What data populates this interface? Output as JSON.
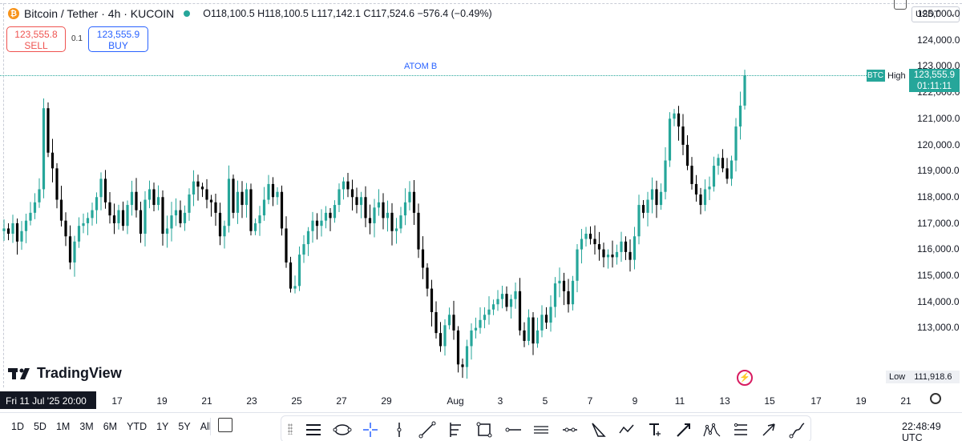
{
  "header": {
    "symbol_title": "Bitcoin / Tether · 4h · KUCOIN",
    "ohlc": "O118,100.5  H118,100.5  L117,142.1  C117,524.6  −576.4 (−0.49%)",
    "coin_glyph": "₿"
  },
  "trade": {
    "sell_price": "123,555.8",
    "sell_label": "SELL",
    "spread": "0.1",
    "buy_price": "123,555.9",
    "buy_label": "BUY"
  },
  "currency": "USDT",
  "price_axis": [
    "125,000.0",
    "124,000.0",
    "123,000.0",
    "122,000.0",
    "121,000.0",
    "120,000.0",
    "119,000.0",
    "118,000.0",
    "117,000.0",
    "116,000.0",
    "115,000.0",
    "114,000.0",
    "113,000.0"
  ],
  "annotation": "ATOM B",
  "tags": {
    "btc": "BTC",
    "high_label": "High",
    "high_value": "123,555.9",
    "countdown": "01:11:11",
    "low_label": "Low",
    "low_value": "111,918.6"
  },
  "brand": "TradingView",
  "time_axis": {
    "current": "Fri 11 Jul '25   20:00",
    "ticks": [
      "17",
      "19",
      "21",
      "23",
      "25",
      "27",
      "29",
      "Aug",
      "3",
      "5",
      "7",
      "9",
      "11",
      "13",
      "15",
      "17",
      "19",
      "21"
    ]
  },
  "ranges": [
    "1D",
    "5D",
    "1M",
    "3M",
    "6M",
    "YTD",
    "1Y",
    "5Y",
    "All"
  ],
  "clock": "22:48:49 UTC",
  "tools": [
    "horizontal-lines-icon",
    "ellipse-icon",
    "crosshair-icon",
    "vertical-line-icon",
    "trend-line-icon",
    "fib-icon",
    "rectangle-icon",
    "horizontal-ray-icon",
    "parallel-channel-icon",
    "path-icon",
    "triangle-icon",
    "arrow-path-icon",
    "text-icon",
    "arrow-marker-icon",
    "pattern-icon",
    "long-short-icon",
    "arrow-icon",
    "brush-icon"
  ],
  "colors": {
    "up": "#26a69a",
    "down": "#000000",
    "accent": "#2962ff",
    "sell": "#ef5350"
  },
  "chart_data": {
    "type": "candlestick",
    "ylim": [
      111500,
      125600
    ],
    "x_ticks": [
      "17",
      "19",
      "21",
      "23",
      "25",
      "27",
      "29",
      "Aug",
      "3",
      "5",
      "7",
      "9",
      "11",
      "13",
      "15",
      "17",
      "19",
      "21"
    ],
    "high": 123555.9,
    "low": 111918.6,
    "closes": [
      117700,
      117500,
      117900,
      117200,
      117600,
      118000,
      118300,
      118700,
      119200,
      122300,
      120600,
      120000,
      118800,
      118000,
      117400,
      116400,
      117200,
      117800,
      117900,
      118100,
      118400,
      118900,
      119600,
      118700,
      118200,
      117900,
      118400,
      117800,
      118600,
      119100,
      118400,
      117500,
      118800,
      119200,
      118600,
      118900,
      117500,
      117700,
      118200,
      118400,
      117900,
      118300,
      119000,
      119500,
      119300,
      119200,
      118800,
      118700,
      118300,
      117400,
      117800,
      119600,
      118300,
      119100,
      118600,
      119200,
      117600,
      117900,
      118200,
      118800,
      119400,
      118900,
      119100,
      117700,
      116400,
      115400,
      115500,
      116700,
      117100,
      117600,
      118000,
      117800,
      118000,
      118300,
      118100,
      118600,
      119200,
      119500,
      119200,
      118900,
      118600,
      118900,
      118100,
      117900,
      118500,
      118700,
      118100,
      118300,
      117600,
      117700,
      118200,
      118700,
      119100,
      118300,
      116900,
      116200,
      115400,
      114500,
      113700,
      113200,
      114000,
      114400,
      113800,
      112500,
      112400,
      113200,
      113800,
      113900,
      114200,
      114400,
      114600,
      114800,
      115000,
      115200,
      114700,
      115000,
      115300,
      113800,
      113400,
      114300,
      113300,
      113800,
      114400,
      114100,
      114700,
      115600,
      115700,
      115300,
      114800,
      115700,
      116900,
      117300,
      117500,
      117300,
      117100,
      116900,
      116600,
      116700,
      116600,
      116800,
      117200,
      116800,
      116500,
      117400,
      118600,
      118300,
      118800,
      119200,
      118600,
      119100,
      120300,
      121900,
      122100,
      121600,
      120900,
      120100,
      119400,
      119000,
      118600,
      119200,
      119300,
      120100,
      120400,
      120000,
      119600,
      120300,
      121600,
      122400,
      123556
    ]
  }
}
